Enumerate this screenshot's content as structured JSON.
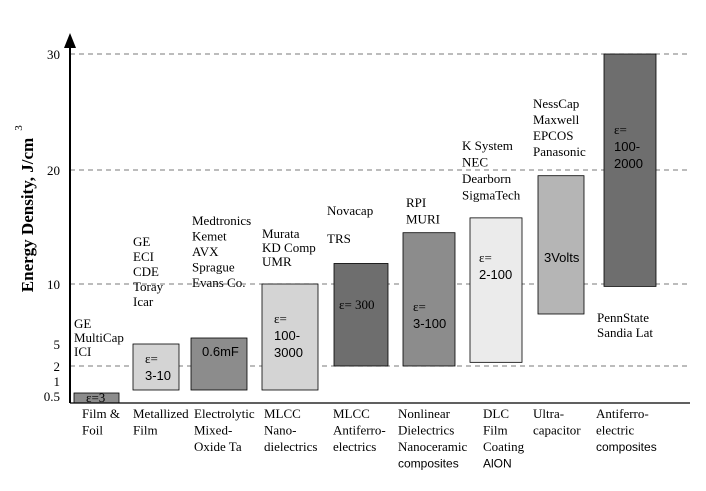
{
  "chart_data": {
    "type": "bar",
    "subtype": "floating-range",
    "ylabel": "Energy Density, J/cm",
    "ylabel_superscript": "3",
    "grid": "dashed horizontal reference lines at 2, 10, 20, 30",
    "yticks": [
      "0.5",
      "1",
      "2",
      "5",
      "10",
      "20",
      "30"
    ],
    "categories": [
      {
        "lines": [
          "Film &",
          "Foil"
        ]
      },
      {
        "lines": [
          "Metallized",
          "Film"
        ]
      },
      {
        "lines": [
          "Electrolytic",
          "Mixed-",
          "Oxide Ta"
        ]
      },
      {
        "lines": [
          "MLCC",
          "Nano-",
          "dielectrics"
        ]
      },
      {
        "lines": [
          "MLCC",
          "Antiferro-",
          "electrics"
        ]
      },
      {
        "lines": [
          "Nonlinear",
          "Dielectrics",
          "Nanoceramic",
          "composites"
        ]
      },
      {
        "lines": [
          "DLC",
          "Film",
          "Coating",
          "AlON"
        ]
      },
      {
        "lines": [
          "Ultra-",
          "capacitor"
        ]
      },
      {
        "lines": [
          "Antiferro-",
          "electric",
          "composites"
        ]
      }
    ],
    "bars": [
      {
        "low": 0.0,
        "high": 0.6,
        "color": "#8c8c8c",
        "label": [
          "ε=3"
        ],
        "makers": [
          "GE",
          "MultiCap",
          "ICI"
        ]
      },
      {
        "low": 0.7,
        "high": 5.0,
        "color": "#d4d4d4",
        "label": [
          "ε=",
          "3-10"
        ],
        "makers": [
          "GE",
          "ECI",
          "CDE",
          "Toray",
          "Icar"
        ]
      },
      {
        "low": 0.7,
        "high": 5.5,
        "color": "#8c8c8c",
        "label": [
          "0.6mF"
        ],
        "makers": [
          "Medtronics",
          "Kemet",
          "AVX",
          "Sprague",
          "Evans Co."
        ]
      },
      {
        "low": 0.7,
        "high": 10.0,
        "color": "#d4d4d4",
        "label": [
          "ε=",
          "100-",
          "3000"
        ],
        "makers": [
          "Murata",
          "KD Comp",
          "UMR"
        ]
      },
      {
        "low": 2.0,
        "high": 11.8,
        "color": "#6e6e6e",
        "label": [
          "ε= 300"
        ],
        "makers": [
          "Novacap",
          "",
          "TRS"
        ]
      },
      {
        "low": 2.0,
        "high": 14.5,
        "color": "#8c8c8c",
        "label": [
          "ε=",
          "3-100"
        ],
        "makers": [
          "RPI",
          "MURI"
        ]
      },
      {
        "low": 2.5,
        "high": 15.8,
        "color": "#ebebeb",
        "label": [
          "ε=",
          "2-100"
        ],
        "makers": [
          "K System",
          "NEC",
          "Dearborn",
          "SigmaTech"
        ]
      },
      {
        "low": 7.5,
        "high": 19.5,
        "color": "#b5b5b5",
        "label": [
          "3Volts"
        ],
        "makers": [
          "NessCap",
          "Maxwell",
          "EPCOS",
          "Panasonic"
        ]
      },
      {
        "low": 9.8,
        "high": 31.0,
        "color": "#6e6e6e",
        "label": [
          "ε=",
          "100-",
          "2000"
        ],
        "makers": [
          "PennState",
          "Sandia Lat"
        ]
      }
    ]
  }
}
